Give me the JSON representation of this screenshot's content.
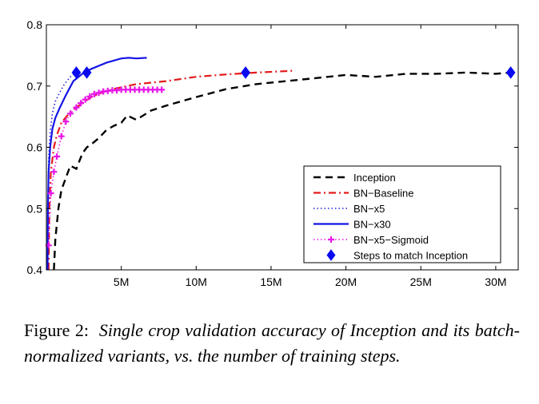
{
  "chart_data": {
    "type": "line",
    "title": "",
    "xlabel": "",
    "ylabel": "",
    "xlim": [
      0,
      31500000
    ],
    "ylim": [
      0.4,
      0.8
    ],
    "x_ticks": [
      5000000,
      10000000,
      15000000,
      20000000,
      25000000,
      30000000
    ],
    "x_tick_labels": [
      "5M",
      "10M",
      "15M",
      "20M",
      "25M",
      "30M"
    ],
    "y_ticks": [
      0.4,
      0.5,
      0.6,
      0.7,
      0.8
    ],
    "y_tick_labels": [
      "0.4",
      "0.5",
      "0.6",
      "0.7",
      "0.8"
    ],
    "grid": false,
    "legend_position": "bottom-right",
    "series": [
      {
        "name": "Inception",
        "color": "#000000",
        "style": "dashed",
        "x": [
          500000,
          600000,
          800000,
          1000000,
          1300000,
          1600000,
          2000000,
          2400000,
          2700000,
          3000000,
          3500000,
          4000000,
          4500000,
          5000000,
          5400000,
          6000000,
          7000000,
          8000000,
          10000000,
          12000000,
          14000000,
          16000000,
          18000000,
          20000000,
          22000000,
          24000000,
          26000000,
          28000000,
          30000000,
          31000000
        ],
        "y": [
          0.4,
          0.45,
          0.5,
          0.53,
          0.55,
          0.57,
          0.565,
          0.59,
          0.6,
          0.605,
          0.615,
          0.628,
          0.635,
          0.64,
          0.652,
          0.645,
          0.66,
          0.668,
          0.682,
          0.695,
          0.703,
          0.708,
          0.713,
          0.718,
          0.715,
          0.72,
          0.72,
          0.722,
          0.72,
          0.722
        ]
      },
      {
        "name": "BN−Baseline",
        "color": "#e41a1c",
        "style": "dashdot",
        "x": [
          150000,
          200000,
          300000,
          500000,
          700000,
          1000000,
          1500000,
          2000000,
          3000000,
          4000000,
          5000000,
          6000000,
          8000000,
          10000000,
          12000000,
          14000000,
          16500000
        ],
        "y": [
          0.4,
          0.5,
          0.56,
          0.6,
          0.62,
          0.64,
          0.655,
          0.665,
          0.682,
          0.692,
          0.698,
          0.703,
          0.708,
          0.715,
          0.719,
          0.722,
          0.725
        ]
      },
      {
        "name": "BN−x5",
        "color": "#1f1fdc",
        "style": "dotted",
        "x": [
          80000,
          100000,
          150000,
          250000,
          400000,
          600000,
          900000,
          1200000,
          1600000,
          2000000
        ],
        "y": [
          0.4,
          0.5,
          0.58,
          0.625,
          0.655,
          0.675,
          0.69,
          0.703,
          0.715,
          0.722
        ]
      },
      {
        "name": "BN−x30",
        "color": "#1515e6",
        "style": "solid",
        "x": [
          80000,
          100000,
          150000,
          250000,
          400000,
          600000,
          900000,
          1300000,
          1800000,
          2400000,
          3000000,
          4000000,
          5000000,
          5500000,
          6000000,
          6700000
        ],
        "y": [
          0.4,
          0.5,
          0.56,
          0.6,
          0.63,
          0.648,
          0.665,
          0.685,
          0.708,
          0.72,
          0.728,
          0.738,
          0.745,
          0.746,
          0.745,
          0.746
        ]
      },
      {
        "name": "BN−x5−Sigmoid",
        "color": "#e815e8",
        "style": "dotted-plus",
        "x": [
          150000,
          300000,
          500000,
          700000,
          1000000,
          1300000,
          1600000,
          2000000,
          2300000,
          2600000,
          2900000,
          3200000,
          3500000,
          3800000,
          4100000,
          4400000,
          4700000,
          5000000,
          5300000,
          5600000,
          5900000,
          6200000,
          6500000,
          6800000,
          7100000,
          7400000,
          7700000
        ],
        "y": [
          0.44,
          0.525,
          0.56,
          0.585,
          0.618,
          0.642,
          0.655,
          0.665,
          0.672,
          0.678,
          0.683,
          0.687,
          0.689,
          0.691,
          0.692,
          0.693,
          0.693,
          0.694,
          0.694,
          0.694,
          0.694,
          0.694,
          0.694,
          0.694,
          0.694,
          0.694,
          0.694
        ]
      }
    ],
    "markers": {
      "name": "Steps to match Inception",
      "color": "#0a0af0",
      "shape": "diamond",
      "x": [
        2000000,
        2700000,
        13300000,
        31000000
      ],
      "y": [
        0.722,
        0.722,
        0.722,
        0.722
      ]
    },
    "legend": [
      "Inception",
      "BN−Baseline",
      "BN−x5",
      "BN−x30",
      "BN−x5−Sigmoid",
      "Steps to match Inception"
    ]
  },
  "caption": {
    "label": "Figure 2:",
    "text": "Single crop validation accuracy of Inception and its batch-normalized variants, vs. the number of training steps."
  }
}
